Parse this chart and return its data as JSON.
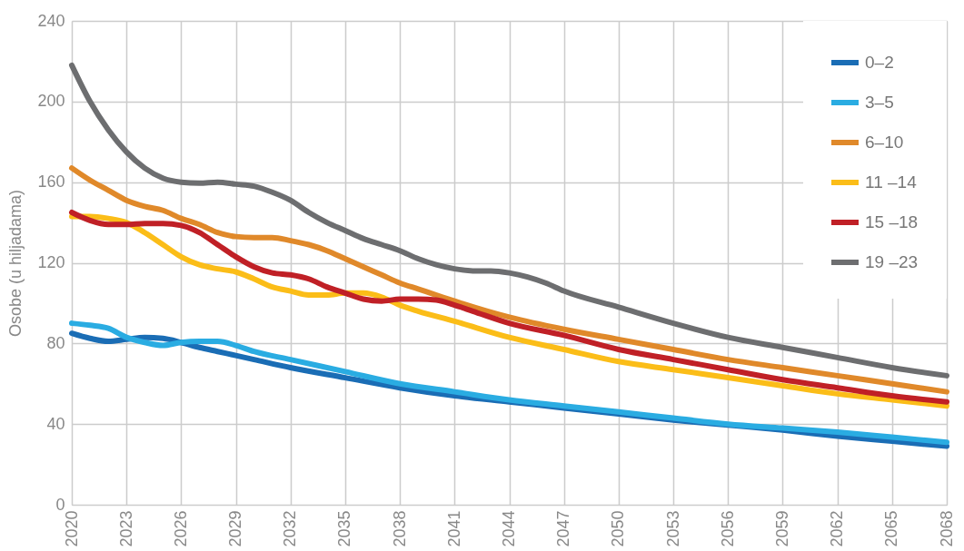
{
  "chart_data": {
    "type": "line",
    "ylabel": "Osobe (u hiljadama)",
    "xlim": [
      2020,
      2068
    ],
    "xticks": [
      2020,
      2023,
      2026,
      2029,
      2032,
      2035,
      2038,
      2041,
      2044,
      2047,
      2050,
      2053,
      2056,
      2059,
      2062,
      2065,
      2068
    ],
    "ylim": [
      0,
      240
    ],
    "yticks": [
      0,
      40,
      80,
      120,
      160,
      200,
      240
    ],
    "grid": true,
    "legend": "top right",
    "marker": "none",
    "line_style": "solid",
    "series": [
      {
        "name": "0–2",
        "color": "#1a6db5",
        "x": [
          2020,
          2021,
          2022,
          2023,
          2024,
          2025,
          2026,
          2027,
          2028,
          2029,
          2030,
          2032,
          2035,
          2038,
          2041,
          2044,
          2047,
          2050,
          2053,
          2056,
          2059,
          2062,
          2065,
          2068
        ],
        "values": [
          85,
          82.5,
          81,
          82,
          83,
          82.5,
          80.5,
          78,
          76,
          74,
          72,
          68,
          63,
          58,
          54,
          51,
          48,
          45,
          42,
          39.5,
          37,
          34,
          31.5,
          29
        ]
      },
      {
        "name": "3–5",
        "color": "#2aace2",
        "x": [
          2020,
          2021,
          2022,
          2023,
          2024,
          2025,
          2026,
          2027,
          2028,
          2029,
          2030,
          2032,
          2035,
          2038,
          2041,
          2044,
          2047,
          2050,
          2053,
          2056,
          2059,
          2062,
          2065,
          2068
        ],
        "values": [
          90,
          89,
          87.5,
          83,
          80.5,
          79,
          80.5,
          81,
          81,
          79,
          76,
          72,
          66,
          60,
          56,
          52,
          49,
          46,
          43,
          40,
          38,
          36,
          33.5,
          31
        ]
      },
      {
        "name": "6–10",
        "color": "#e0892a",
        "x": [
          2020,
          2021,
          2022,
          2023,
          2024,
          2025,
          2026,
          2027,
          2028,
          2029,
          2030,
          2031,
          2032,
          2033,
          2034,
          2035,
          2036,
          2037,
          2038,
          2039,
          2040,
          2041,
          2044,
          2047,
          2050,
          2053,
          2056,
          2059,
          2062,
          2065,
          2068
        ],
        "values": [
          167,
          161,
          156,
          151,
          148,
          146,
          142,
          139,
          135,
          133,
          132.5,
          132.5,
          131,
          129,
          126,
          122,
          118,
          114,
          110,
          107,
          104,
          101,
          93,
          87,
          82,
          77,
          72,
          68,
          64,
          60,
          56
        ]
      },
      {
        "name": "11  –14",
        "color": "#fbbd18",
        "x": [
          2020,
          2021,
          2022,
          2023,
          2024,
          2025,
          2026,
          2027,
          2028,
          2029,
          2030,
          2031,
          2032,
          2033,
          2034,
          2035,
          2036,
          2037,
          2038,
          2039,
          2041,
          2044,
          2047,
          2050,
          2053,
          2056,
          2059,
          2062,
          2065,
          2068
        ],
        "values": [
          143,
          143,
          142,
          140,
          135,
          129,
          123,
          119,
          117,
          115.5,
          112,
          108,
          106,
          104,
          104,
          105,
          105,
          103,
          99,
          96,
          91,
          83,
          77,
          71,
          67,
          63,
          59,
          55,
          52,
          49
        ]
      },
      {
        "name": "15 –18",
        "color": "#c02026",
        "x": [
          2020,
          2021,
          2022,
          2023,
          2024,
          2025,
          2026,
          2027,
          2028,
          2029,
          2030,
          2031,
          2032,
          2033,
          2034,
          2035,
          2036,
          2037,
          2038,
          2039,
          2040,
          2041,
          2042,
          2044,
          2047,
          2050,
          2053,
          2056,
          2059,
          2062,
          2065,
          2068
        ],
        "values": [
          145,
          141,
          139,
          139,
          139.5,
          139.5,
          138.5,
          135,
          129,
          123,
          118,
          115,
          114,
          112,
          108,
          105,
          102,
          101,
          102,
          102,
          101.5,
          99,
          96,
          90,
          84,
          77,
          72,
          67,
          62,
          58,
          54,
          51
        ]
      },
      {
        "name": "19 –23",
        "color": "#6d6e70",
        "x": [
          2020,
          2021,
          2022,
          2023,
          2024,
          2025,
          2026,
          2027,
          2028,
          2029,
          2030,
          2031,
          2032,
          2033,
          2034,
          2035,
          2036,
          2037,
          2038,
          2039,
          2040,
          2041,
          2042,
          2043,
          2044,
          2045,
          2046,
          2047,
          2050,
          2053,
          2056,
          2059,
          2062,
          2065,
          2068
        ],
        "values": [
          218,
          200,
          186,
          175,
          167,
          162,
          160,
          159.5,
          160,
          159,
          158,
          155,
          151,
          145,
          140,
          136,
          132,
          129,
          126,
          122,
          119,
          117,
          116,
          116,
          115,
          113,
          110,
          106,
          98,
          90,
          83,
          78,
          73,
          68,
          64
        ]
      }
    ]
  }
}
